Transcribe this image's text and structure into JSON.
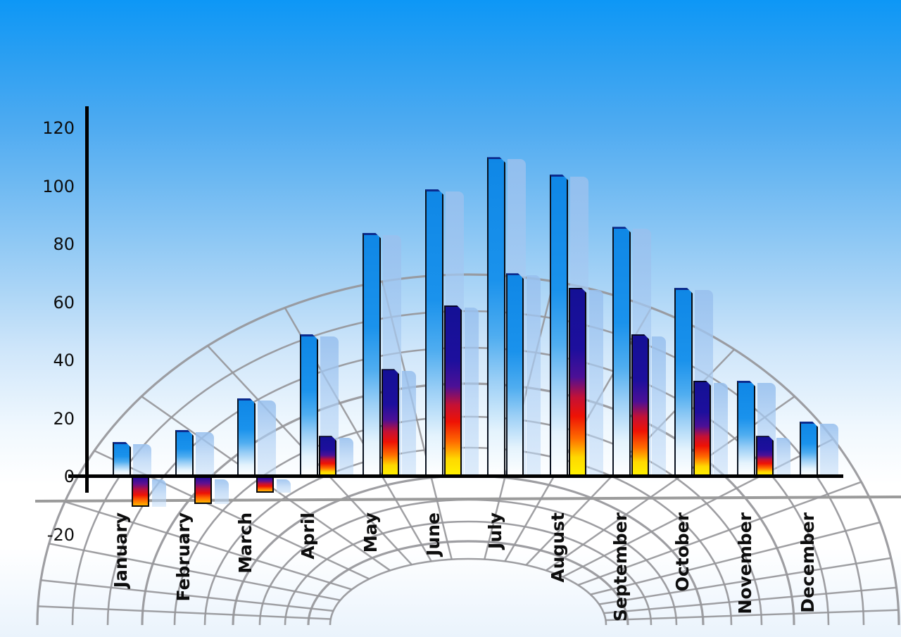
{
  "chart_data": {
    "type": "bar",
    "title": "",
    "xlabel": "",
    "ylabel": "",
    "categories": [
      "January",
      "February",
      "March",
      "April",
      "May",
      "June",
      "July",
      "August",
      "September",
      "October",
      "November",
      "December"
    ],
    "series": [
      {
        "name": "series-1-blue",
        "values": [
          12,
          16,
          27,
          49,
          84,
          99,
          110,
          104,
          86,
          65,
          33,
          19
        ]
      },
      {
        "name": "series-2-accent",
        "values": [
          -10,
          -9,
          -5,
          14,
          37,
          59,
          70,
          65,
          49,
          33,
          14,
          null
        ],
        "bar_styles": [
          "rainbow",
          "rainbow",
          "rainbow",
          "rainbow",
          "rainbow",
          "rainbow",
          "blue",
          "rainbow",
          "rainbow",
          "rainbow",
          "rainbow",
          null
        ]
      }
    ],
    "ylim": [
      -20,
      120
    ],
    "yticks": [
      120,
      100,
      80,
      60,
      40,
      20,
      0,
      -20
    ],
    "legend": "none",
    "grid": "curved gray perspective floor grid behind bars",
    "background": "blue sky gradient fading to white near bottom",
    "bar_shadows": "each bar has a translucent pale-blue duplicate offset to the right"
  },
  "colors": {
    "sky_top": "#0d97f6",
    "sky_bottom": "#eaf3fc",
    "bar_blue_top": "#0f87e6",
    "bar_blue_bottom": "#ffffff",
    "bar_blue_bevel": "#0b2b8e",
    "rainbow_top": "#141095",
    "rainbow_red": "#ee1205",
    "rainbow_bottom": "#fff200",
    "ghost_bar": "#a8c9ee",
    "grid_line": "#96969a",
    "axis_line": "#000000",
    "tick_text": "#0d0d0d"
  }
}
